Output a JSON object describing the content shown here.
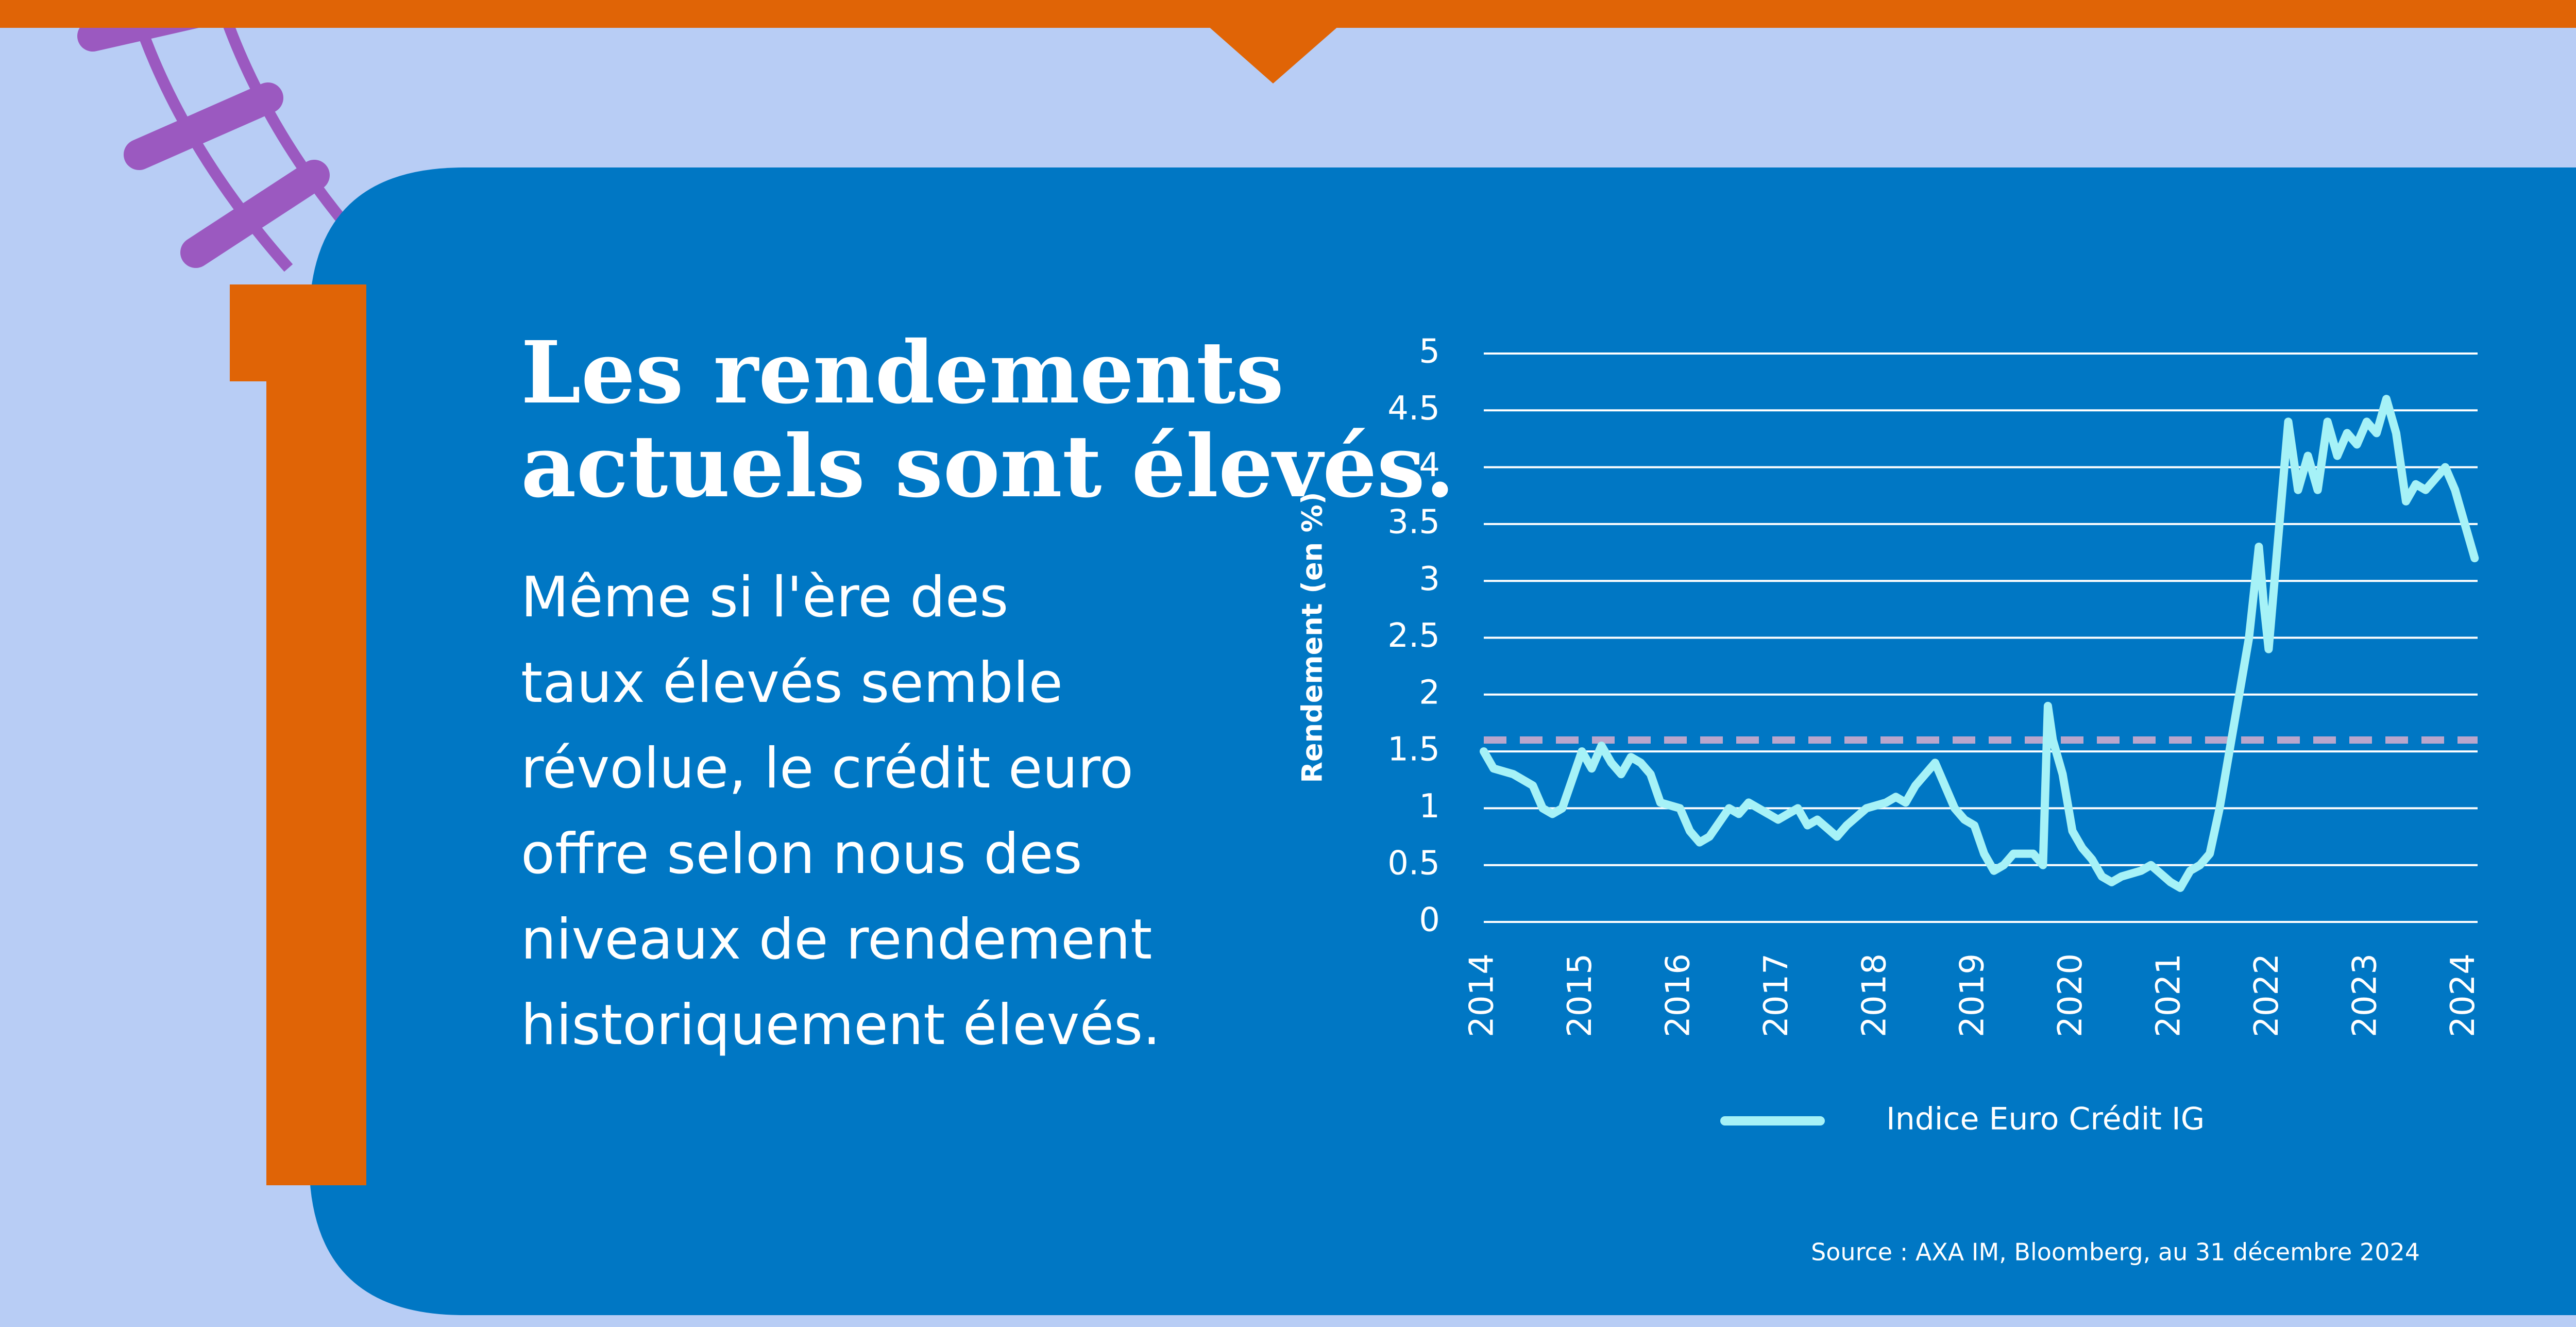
{
  "headline": {
    "title_lines": [
      "Les rendements",
      "actuels sont élevés."
    ],
    "body_lines": [
      "Même si l'ère des",
      "taux élevés semble",
      "révolue, le crédit euro",
      "offre selon nous des",
      "niveaux de rendement",
      "historiquement élevés."
    ]
  },
  "chart_data": {
    "type": "line",
    "y_label": "Rendement (en %)",
    "x": [
      2014.0,
      2014.1,
      2014.3,
      2014.5,
      2014.6,
      2014.7,
      2014.8,
      2014.9,
      2015.0,
      2015.1,
      2015.2,
      2015.3,
      2015.4,
      2015.5,
      2015.6,
      2015.7,
      2015.8,
      2016.0,
      2016.1,
      2016.2,
      2016.3,
      2016.5,
      2016.6,
      2016.7,
      2016.9,
      2017.0,
      2017.2,
      2017.3,
      2017.4,
      2017.6,
      2017.7,
      2017.9,
      2018.1,
      2018.2,
      2018.3,
      2018.4,
      2018.6,
      2018.7,
      2018.8,
      2018.9,
      2019.0,
      2019.1,
      2019.2,
      2019.3,
      2019.4,
      2019.6,
      2019.7,
      2019.75,
      2019.8,
      2019.9,
      2020.0,
      2020.1,
      2020.2,
      2020.3,
      2020.4,
      2020.5,
      2020.7,
      2020.8,
      2021.0,
      2021.1,
      2021.2,
      2021.3,
      2021.4,
      2021.5,
      2021.6,
      2021.7,
      2021.8,
      2021.9,
      2021.95,
      2022.0,
      2022.1,
      2022.2,
      2022.3,
      2022.4,
      2022.5,
      2022.6,
      2022.7,
      2022.8,
      2022.9,
      2023.0,
      2023.1,
      2023.2,
      2023.3,
      2023.4,
      2023.5,
      2023.6,
      2023.7,
      2023.8,
      2023.9,
      2024.0,
      2024.1
    ],
    "series": [
      {
        "name": "Indice Euro Crédit IG",
        "color": "#a6f2f7",
        "values": [
          1.5,
          1.35,
          1.3,
          1.2,
          1.0,
          0.95,
          1.0,
          1.25,
          1.5,
          1.35,
          1.55,
          1.4,
          1.3,
          1.45,
          1.4,
          1.3,
          1.05,
          1.0,
          0.8,
          0.7,
          0.75,
          1.0,
          0.95,
          1.05,
          0.95,
          0.9,
          1.0,
          0.85,
          0.9,
          0.75,
          0.85,
          1.0,
          1.05,
          1.1,
          1.05,
          1.2,
          1.4,
          1.2,
          1.0,
          0.9,
          0.85,
          0.6,
          0.45,
          0.5,
          0.6,
          0.6,
          0.5,
          1.9,
          1.6,
          1.3,
          0.8,
          0.65,
          0.55,
          0.4,
          0.35,
          0.4,
          0.45,
          0.5,
          0.35,
          0.3,
          0.45,
          0.5,
          0.6,
          1.0,
          1.5,
          2.0,
          2.5,
          3.3,
          2.8,
          2.4,
          3.4,
          4.4,
          3.8,
          4.1,
          3.8,
          4.4,
          4.1,
          4.3,
          4.2,
          4.4,
          4.3,
          4.6,
          4.3,
          3.7,
          3.85,
          3.8,
          3.9,
          4.0,
          3.8,
          3.5,
          3.2
        ]
      }
    ],
    "reference_line": {
      "value": 1.6,
      "color": "#b9a6cc"
    },
    "xlim": [
      2014,
      2024.13
    ],
    "xticks": [
      2014,
      2015,
      2016,
      2017,
      2018,
      2019,
      2020,
      2021,
      2022,
      2023,
      2024
    ],
    "ylim": [
      0,
      5
    ],
    "yticks": [
      0,
      0.5,
      1,
      1.5,
      2,
      2.5,
      3,
      3.5,
      4,
      4.5,
      5
    ],
    "grid": true,
    "legend": "bottom",
    "source": "Source : AXA IM, Bloomberg, au 31 décembre 2024"
  }
}
